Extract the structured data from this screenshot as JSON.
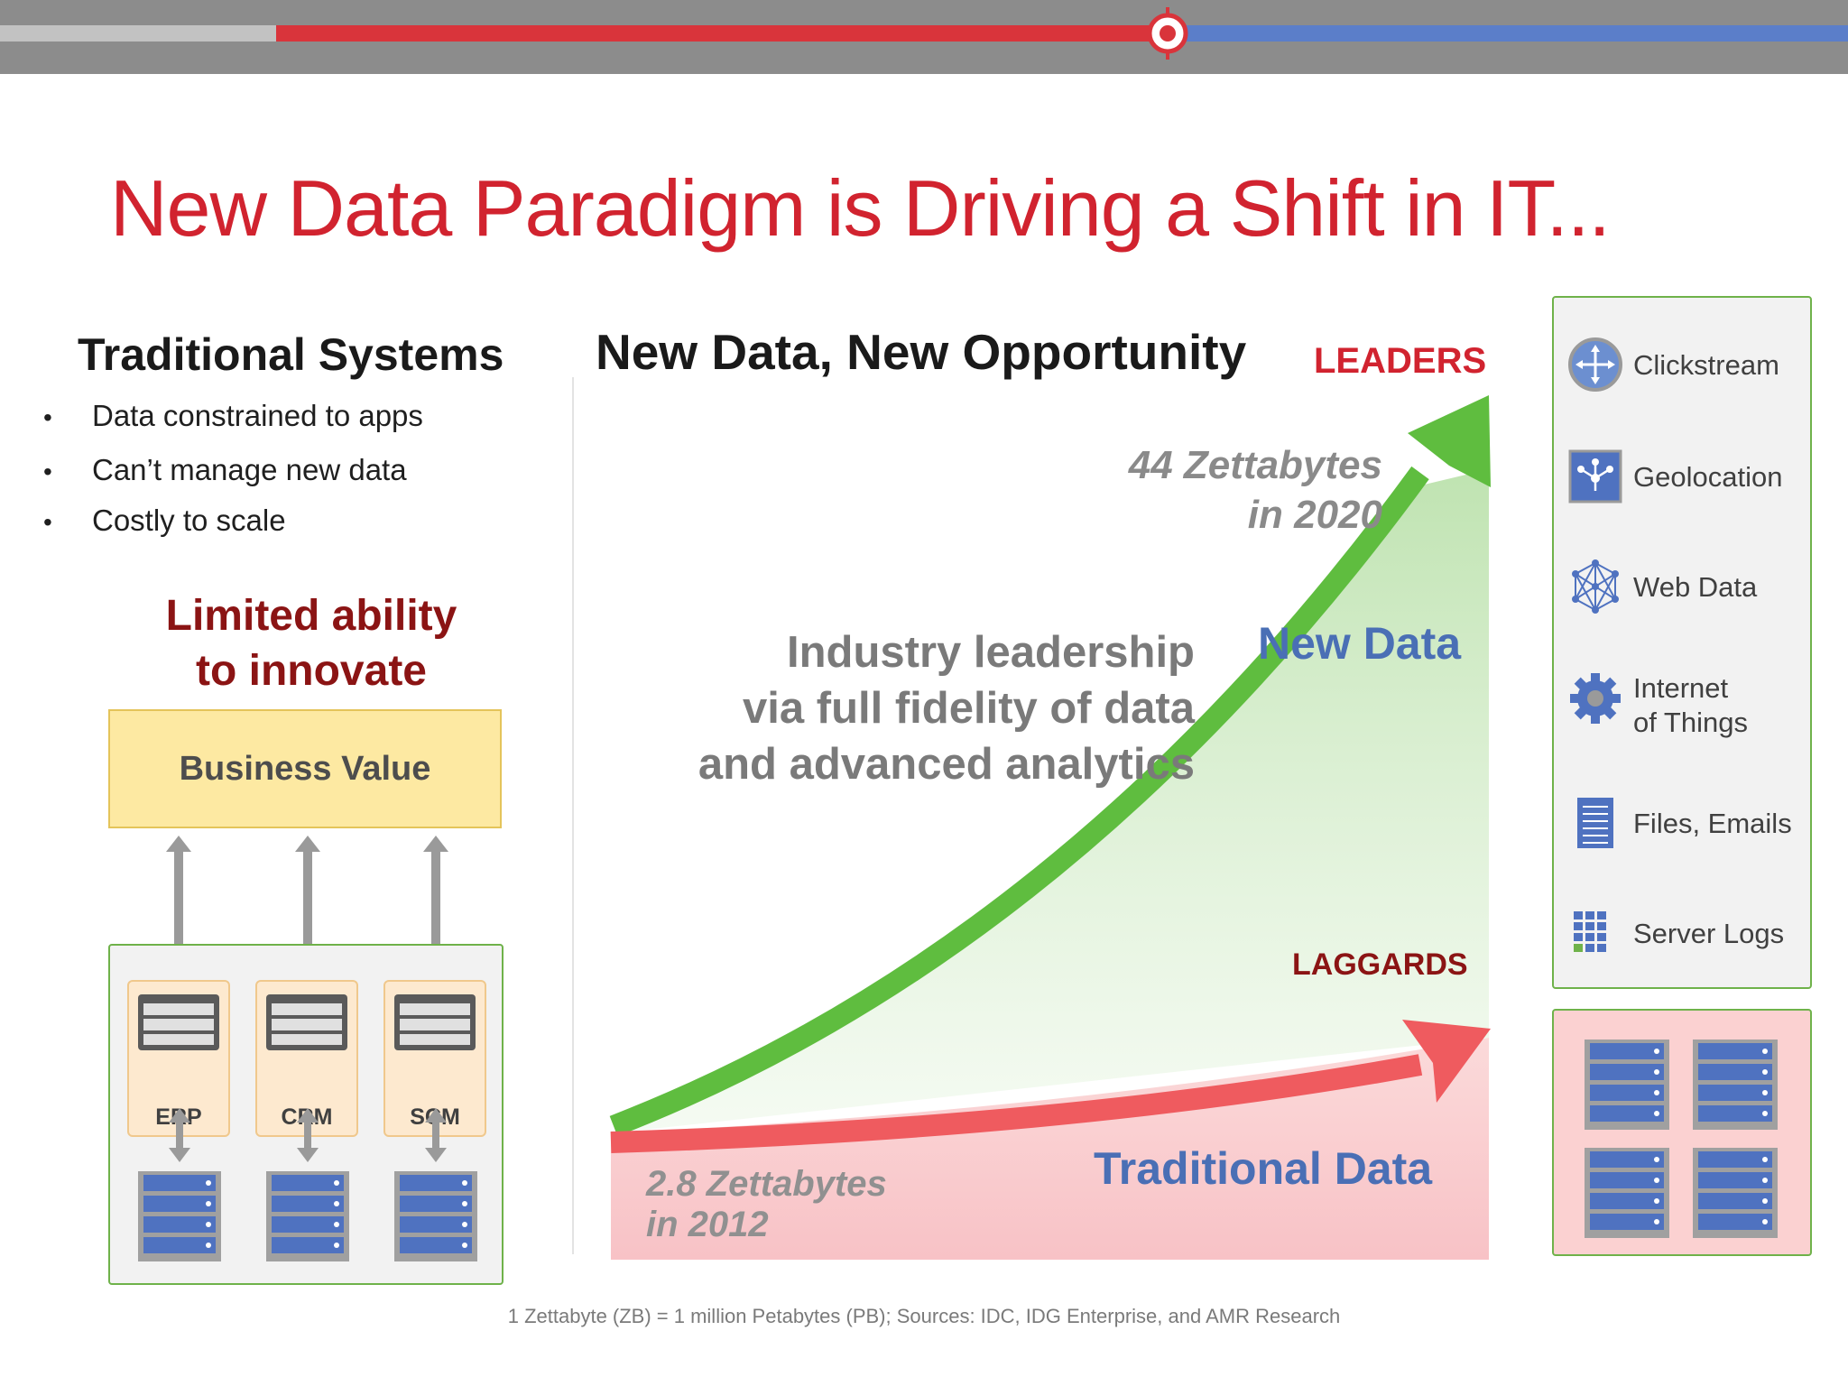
{
  "title": "New Data Paradigm is Driving a Shift in IT...",
  "traditional": {
    "heading": "Traditional Systems",
    "bullets": [
      "Data constrained to apps",
      "Can’t manage new data",
      "Costly to scale"
    ],
    "limited_line1": "Limited ability",
    "limited_line2": "to innovate",
    "business_value": "Business Value",
    "apps": [
      "ERP",
      "CRM",
      "SCM"
    ]
  },
  "opportunity": {
    "heading": "New Data, New Opportunity",
    "leaders": "LEADERS",
    "laggards": "LAGGARDS",
    "zb_2020_line1": "44 Zettabytes",
    "zb_2020_line2": "in 2020",
    "zb_2012_line1": "2.8 Zettabytes",
    "zb_2012_line2": "in 2012",
    "industry_line1": "Industry leadership",
    "industry_line2": "via full fidelity of data",
    "industry_line3": "and advanced analytics",
    "new_data": "New Data",
    "traditional_data": "Traditional Data"
  },
  "sources": [
    {
      "label": "Clickstream",
      "icon": "clickstream-icon"
    },
    {
      "label": "Geolocation",
      "icon": "geolocation-icon"
    },
    {
      "label": "Web Data",
      "icon": "web-data-icon"
    },
    {
      "label_line1": "Internet",
      "label_line2": "of Things",
      "icon": "gear-icon"
    },
    {
      "label": "Files, Emails",
      "icon": "document-icon"
    },
    {
      "label": "Server Logs",
      "icon": "grid-icon"
    }
  ],
  "footnote": "1 Zettabyte (ZB) = 1 million Petabytes (PB); Sources: IDC, IDG Enterprise, and AMR Research",
  "colors": {
    "title_red": "#d1232f",
    "dark_red": "#8b1414",
    "green_arrow": "#5fbd3f",
    "red_arrow": "#ef5b5f",
    "blue_label": "#4a6fb5",
    "server_blue": "#4f72c0"
  }
}
